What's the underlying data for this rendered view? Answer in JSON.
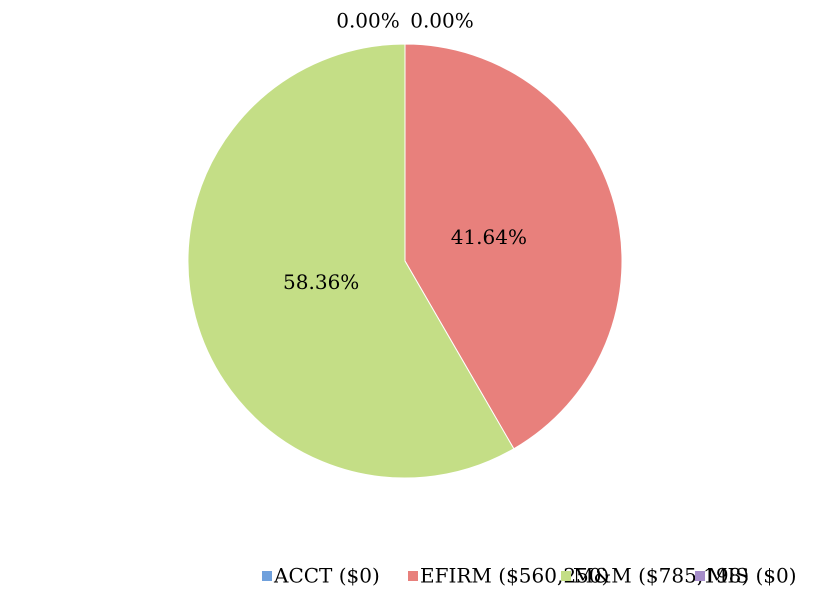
{
  "chart_data": {
    "type": "pie",
    "categories": [
      "ACCT ($0)",
      "EFIRM ($560,250)",
      "M&M ($785,198)",
      "MIS ($0)"
    ],
    "values": [
      0,
      41.64,
      58.36,
      0
    ],
    "value_labels": [
      "0.00%",
      "41.64%",
      "58.36%",
      "0.00%"
    ],
    "colors": [
      "#6fa0dc",
      "#e8807c",
      "#c4de86",
      "#a58cc9"
    ],
    "legend": "bottom"
  }
}
